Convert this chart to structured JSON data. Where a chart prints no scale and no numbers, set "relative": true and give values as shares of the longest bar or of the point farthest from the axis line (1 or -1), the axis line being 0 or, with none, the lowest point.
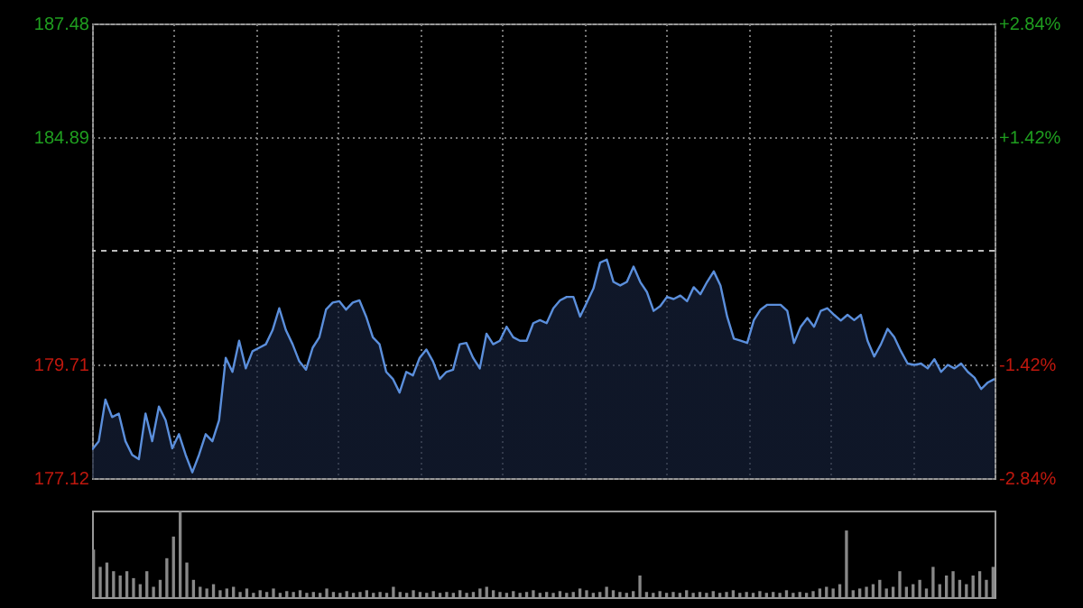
{
  "chart_data": [
    {
      "type": "area",
      "categories": [
        null,
        null,
        null,
        null,
        null,
        null,
        null,
        null,
        null,
        null,
        null,
        null,
        null,
        null,
        null,
        null,
        null,
        null,
        null,
        null,
        null,
        null,
        null,
        null,
        null,
        null,
        null,
        null,
        null,
        null,
        null,
        null,
        null,
        null,
        null,
        null,
        null,
        null,
        null,
        null,
        null,
        null,
        null,
        null,
        null,
        null,
        null,
        null,
        null,
        null,
        null,
        null,
        null,
        null,
        null,
        null,
        null,
        null,
        null,
        null,
        null,
        null,
        null,
        null,
        null,
        null,
        null,
        null,
        null,
        null,
        null,
        null,
        null,
        null,
        null,
        null,
        null,
        null,
        null,
        null,
        null,
        null,
        null,
        null,
        null,
        null,
        null,
        null,
        null,
        null,
        null,
        null,
        null,
        null,
        null,
        null,
        null,
        null,
        null,
        null,
        null,
        null,
        null,
        null,
        null,
        null,
        null,
        null,
        null,
        null,
        null,
        null,
        null,
        null,
        null,
        null,
        null,
        null,
        null,
        null,
        null,
        null,
        null,
        null,
        null,
        null,
        null,
        null,
        null,
        null,
        null,
        null,
        null,
        null,
        null,
        null
      ],
      "series": [
        {
          "color": "#5b8fdc",
          "values": [
            177.77,
            177.96,
            178.91,
            178.51,
            178.59,
            177.96,
            177.65,
            177.55,
            178.59,
            177.96,
            178.75,
            178.44,
            177.8,
            178.12,
            177.65,
            177.25,
            177.65,
            178.12,
            177.96,
            178.44,
            179.86,
            179.54,
            180.25,
            179.62,
            180.01,
            180.09,
            180.17,
            180.49,
            180.99,
            180.49,
            180.17,
            179.78,
            179.59,
            180.09,
            180.33,
            180.96,
            181.12,
            181.15,
            180.96,
            181.12,
            181.17,
            180.8,
            180.33,
            180.17,
            179.54,
            179.38,
            179.07,
            179.54,
            179.46,
            179.86,
            180.05,
            179.78,
            179.38,
            179.54,
            179.59,
            180.17,
            180.2,
            179.86,
            179.62,
            180.41,
            180.17,
            180.25,
            180.57,
            180.33,
            180.25,
            180.25,
            180.65,
            180.72,
            180.65,
            180.99,
            181.17,
            181.25,
            181.25,
            180.8,
            181.12,
            181.44,
            182.03,
            182.1,
            181.59,
            181.51,
            181.59,
            181.94,
            181.59,
            181.36,
            180.93,
            181.04,
            181.25,
            181.2,
            181.28,
            181.15,
            181.47,
            181.31,
            181.59,
            181.83,
            181.51,
            180.8,
            180.3,
            180.25,
            180.2,
            180.72,
            180.96,
            181.07,
            181.07,
            181.07,
            180.93,
            180.2,
            180.57,
            180.77,
            180.57,
            180.93,
            180.99,
            180.84,
            180.71,
            180.84,
            180.72,
            180.84,
            180.25,
            179.89,
            180.17,
            180.52,
            180.33,
            180.01,
            179.73,
            179.7,
            179.73,
            179.62,
            179.83,
            179.54,
            179.7,
            179.62,
            179.73,
            179.54,
            179.41,
            179.15,
            179.3,
            179.38
          ]
        }
      ],
      "ylim": [
        177.12,
        187.48
      ],
      "yticks": [
        177.12,
        179.71,
        184.89,
        187.48
      ],
      "y2lim": [
        -2.84,
        2.84
      ],
      "y2ticks": [
        {
          "value": -2.84,
          "label": "-2.84%"
        },
        {
          "value": -1.42,
          "label": "-1.42%"
        },
        {
          "value": 1.42,
          "label": "+1.42%"
        },
        {
          "value": 2.84,
          "label": "+2.84%"
        }
      ],
      "ref_lines": [
        {
          "axis": "y",
          "value": 182.3,
          "line_style": "dashed"
        }
      ],
      "grid": true,
      "tick_labels": "y"
    },
    {
      "type": "bar",
      "relative": true,
      "tick_labels": false,
      "color": "#888888",
      "categories": [
        null,
        null,
        null,
        null,
        null,
        null,
        null,
        null,
        null,
        null,
        null,
        null,
        null,
        null,
        null,
        null,
        null,
        null,
        null,
        null,
        null,
        null,
        null,
        null,
        null,
        null,
        null,
        null,
        null,
        null,
        null,
        null,
        null,
        null,
        null,
        null,
        null,
        null,
        null,
        null,
        null,
        null,
        null,
        null,
        null,
        null,
        null,
        null,
        null,
        null,
        null,
        null,
        null,
        null,
        null,
        null,
        null,
        null,
        null,
        null,
        null,
        null,
        null,
        null,
        null,
        null,
        null,
        null,
        null,
        null,
        null,
        null,
        null,
        null,
        null,
        null,
        null,
        null,
        null,
        null,
        null,
        null,
        null,
        null,
        null,
        null,
        null,
        null,
        null,
        null,
        null,
        null,
        null,
        null,
        null,
        null,
        null,
        null,
        null,
        null,
        null,
        null,
        null,
        null,
        null,
        null,
        null,
        null,
        null,
        null,
        null,
        null,
        null,
        null,
        null,
        null,
        null,
        null,
        null,
        null,
        null,
        null,
        null,
        null,
        null,
        null,
        null,
        null,
        null,
        null,
        null,
        null,
        null,
        null,
        null,
        null
      ],
      "values": [
        0.55,
        0.35,
        0.4,
        0.3,
        0.25,
        0.3,
        0.22,
        0.15,
        0.3,
        0.12,
        0.2,
        0.45,
        0.7,
        1.0,
        0.4,
        0.2,
        0.12,
        0.1,
        0.15,
        0.08,
        0.1,
        0.12,
        0.06,
        0.1,
        0.05,
        0.08,
        0.06,
        0.1,
        0.05,
        0.07,
        0.06,
        0.08,
        0.05,
        0.06,
        0.05,
        0.1,
        0.06,
        0.05,
        0.07,
        0.05,
        0.06,
        0.08,
        0.05,
        0.06,
        0.05,
        0.12,
        0.06,
        0.05,
        0.08,
        0.06,
        0.05,
        0.07,
        0.05,
        0.06,
        0.05,
        0.08,
        0.05,
        0.06,
        0.1,
        0.12,
        0.08,
        0.06,
        0.05,
        0.07,
        0.05,
        0.06,
        0.08,
        0.05,
        0.06,
        0.05,
        0.07,
        0.05,
        0.06,
        0.1,
        0.08,
        0.05,
        0.06,
        0.12,
        0.08,
        0.06,
        0.05,
        0.07,
        0.25,
        0.06,
        0.05,
        0.07,
        0.05,
        0.06,
        0.05,
        0.08,
        0.05,
        0.06,
        0.05,
        0.07,
        0.05,
        0.06,
        0.08,
        0.05,
        0.06,
        0.05,
        0.07,
        0.05,
        0.06,
        0.05,
        0.08,
        0.05,
        0.06,
        0.05,
        0.07,
        0.1,
        0.12,
        0.1,
        0.15,
        0.77,
        0.08,
        0.1,
        0.12,
        0.15,
        0.2,
        0.1,
        0.12,
        0.3,
        0.12,
        0.15,
        0.2,
        0.1,
        0.35,
        0.15,
        0.25,
        0.3,
        0.2,
        0.15,
        0.25,
        0.3,
        0.2,
        0.35
      ]
    }
  ]
}
